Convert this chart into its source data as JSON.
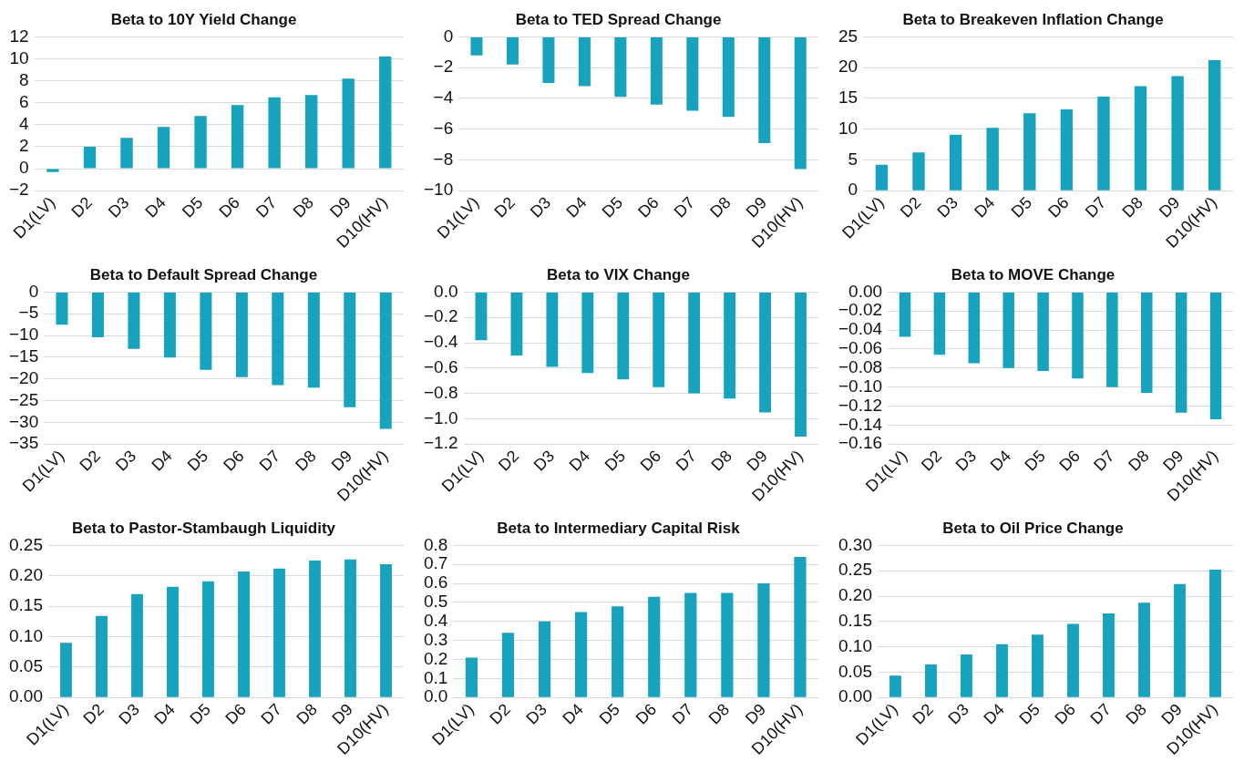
{
  "chart_data": [
    {
      "type": "bar",
      "title": "Beta to 10Y Yield Change",
      "categories": [
        "D1(LV)",
        "D2",
        "D3",
        "D4",
        "D5",
        "D6",
        "D7",
        "D8",
        "D9",
        "D10(HV)"
      ],
      "values": [
        -0.3,
        2.0,
        2.8,
        3.8,
        4.8,
        5.8,
        6.5,
        6.7,
        8.2,
        10.2
      ],
      "color": "#17a2bd",
      "ylim": [
        -2,
        12
      ],
      "yticks": [
        {
          "value": -2,
          "label": "−2"
        },
        0,
        2,
        4,
        6,
        8,
        10,
        12
      ],
      "grid": "y"
    },
    {
      "type": "bar",
      "title": "Beta to TED Spread Change",
      "categories": [
        "D1(LV)",
        "D2",
        "D3",
        "D4",
        "D5",
        "D6",
        "D7",
        "D8",
        "D9",
        "D10(HV)"
      ],
      "values": [
        -1.2,
        -1.8,
        -3.0,
        -3.2,
        -3.9,
        -4.4,
        -4.8,
        -5.2,
        -6.9,
        -8.6
      ],
      "color": "#17a2bd",
      "ylim": [
        -10,
        0
      ],
      "yticks": [
        {
          "value": -10,
          "label": "−10"
        },
        {
          "value": -8,
          "label": "−8"
        },
        {
          "value": -6,
          "label": "−6"
        },
        {
          "value": -4,
          "label": "−4"
        },
        {
          "value": -2,
          "label": "−2"
        },
        0
      ],
      "grid": "y"
    },
    {
      "type": "bar",
      "title": "Beta to Breakeven Inflation Change",
      "categories": [
        "D1(LV)",
        "D2",
        "D3",
        "D4",
        "D5",
        "D6",
        "D7",
        "D8",
        "D9",
        "D10(HV)"
      ],
      "values": [
        4.2,
        6.2,
        9.1,
        10.2,
        12.6,
        13.2,
        15.3,
        17.0,
        18.6,
        21.2
      ],
      "color": "#17a2bd",
      "ylim": [
        0,
        25
      ],
      "yticks": [
        0,
        5,
        10,
        15,
        20,
        25
      ],
      "grid": "y"
    },
    {
      "type": "bar",
      "title": "Beta to Default Spread Change",
      "categories": [
        "D1(LV)",
        "D2",
        "D3",
        "D4",
        "D5",
        "D6",
        "D7",
        "D8",
        "D9",
        "D10(HV)"
      ],
      "values": [
        -7.5,
        -10.4,
        -13.1,
        -15.1,
        -17.9,
        -19.6,
        -21.4,
        -22.0,
        -26.5,
        -31.5
      ],
      "color": "#17a2bd",
      "ylim": [
        -35,
        0
      ],
      "yticks": [
        {
          "value": -35,
          "label": "−35"
        },
        {
          "value": -30,
          "label": "−30"
        },
        {
          "value": -25,
          "label": "−25"
        },
        {
          "value": -20,
          "label": "−20"
        },
        {
          "value": -15,
          "label": "−15"
        },
        {
          "value": -10,
          "label": "−10"
        },
        {
          "value": -5,
          "label": "−5"
        },
        0
      ],
      "grid": "y"
    },
    {
      "type": "bar",
      "title": "Beta to VIX Change",
      "categories": [
        "D1(LV)",
        "D2",
        "D3",
        "D4",
        "D5",
        "D6",
        "D7",
        "D8",
        "D9",
        "D10(HV)"
      ],
      "values": [
        -0.38,
        -0.5,
        -0.59,
        -0.64,
        -0.69,
        -0.75,
        -0.8,
        -0.84,
        -0.95,
        -1.14
      ],
      "color": "#17a2bd",
      "ylim": [
        -1.2,
        0
      ],
      "yticks": [
        {
          "value": -1.2,
          "label": "−1.2"
        },
        {
          "value": -1.0,
          "label": "−1.0"
        },
        {
          "value": -0.8,
          "label": "−0.8"
        },
        {
          "value": -0.6,
          "label": "−0.6"
        },
        {
          "value": -0.4,
          "label": "−0.4"
        },
        {
          "value": -0.2,
          "label": "−0.2"
        },
        {
          "value": 0,
          "label": "0.0"
        }
      ],
      "grid": "y"
    },
    {
      "type": "bar",
      "title": "Beta to MOVE Change",
      "categories": [
        "D1(LV)",
        "D2",
        "D3",
        "D4",
        "D5",
        "D6",
        "D7",
        "D8",
        "D9",
        "D10(HV)"
      ],
      "values": [
        -0.047,
        -0.066,
        -0.075,
        -0.08,
        -0.083,
        -0.091,
        -0.1,
        -0.106,
        -0.127,
        -0.134
      ],
      "color": "#17a2bd",
      "ylim": [
        -0.16,
        0
      ],
      "yticks": [
        {
          "value": -0.16,
          "label": "−0.16"
        },
        {
          "value": -0.14,
          "label": "−0.14"
        },
        {
          "value": -0.12,
          "label": "−0.12"
        },
        {
          "value": -0.1,
          "label": "−0.10"
        },
        {
          "value": -0.08,
          "label": "−0.08"
        },
        {
          "value": -0.06,
          "label": "−0.06"
        },
        {
          "value": -0.04,
          "label": "−0.04"
        },
        {
          "value": -0.02,
          "label": "−0.02"
        },
        {
          "value": 0,
          "label": "0.00"
        }
      ],
      "grid": "y"
    },
    {
      "type": "bar",
      "title": "Beta to Pastor-Stambaugh Liquidity",
      "categories": [
        "D1(LV)",
        "D2",
        "D3",
        "D4",
        "D5",
        "D6",
        "D7",
        "D8",
        "D9",
        "D10(HV)"
      ],
      "values": [
        0.09,
        0.134,
        0.17,
        0.182,
        0.191,
        0.207,
        0.212,
        0.225,
        0.227,
        0.219
      ],
      "color": "#17a2bd",
      "ylim": [
        0,
        0.25
      ],
      "yticks": [
        {
          "value": 0,
          "label": "0.00"
        },
        0.05,
        {
          "value": 0.1,
          "label": "0.10"
        },
        0.15,
        {
          "value": 0.2,
          "label": "0.20"
        },
        0.25
      ],
      "grid": "y"
    },
    {
      "type": "bar",
      "title": "Beta to Intermediary Capital Risk",
      "categories": [
        "D1(LV)",
        "D2",
        "D3",
        "D4",
        "D5",
        "D6",
        "D7",
        "D8",
        "D9",
        "D10(HV)"
      ],
      "values": [
        0.21,
        0.34,
        0.4,
        0.45,
        0.48,
        0.53,
        0.55,
        0.55,
        0.6,
        0.74
      ],
      "color": "#17a2bd",
      "ylim": [
        0,
        0.8
      ],
      "yticks": [
        {
          "value": 0,
          "label": "0.0"
        },
        0.1,
        0.2,
        0.3,
        0.4,
        0.5,
        0.6,
        0.7,
        0.8
      ],
      "grid": "y"
    },
    {
      "type": "bar",
      "title": "Beta to Oil Price Change",
      "categories": [
        "D1(LV)",
        "D2",
        "D3",
        "D4",
        "D5",
        "D6",
        "D7",
        "D8",
        "D9",
        "D10(HV)"
      ],
      "values": [
        0.043,
        0.065,
        0.085,
        0.105,
        0.124,
        0.145,
        0.166,
        0.187,
        0.224,
        0.252
      ],
      "color": "#17a2bd",
      "ylim": [
        0,
        0.3
      ],
      "yticks": [
        {
          "value": 0,
          "label": "0.00"
        },
        0.05,
        {
          "value": 0.1,
          "label": "0.10"
        },
        0.15,
        {
          "value": 0.2,
          "label": "0.20"
        },
        0.25,
        {
          "value": 0.3,
          "label": "0.30"
        }
      ],
      "grid": "y"
    }
  ]
}
